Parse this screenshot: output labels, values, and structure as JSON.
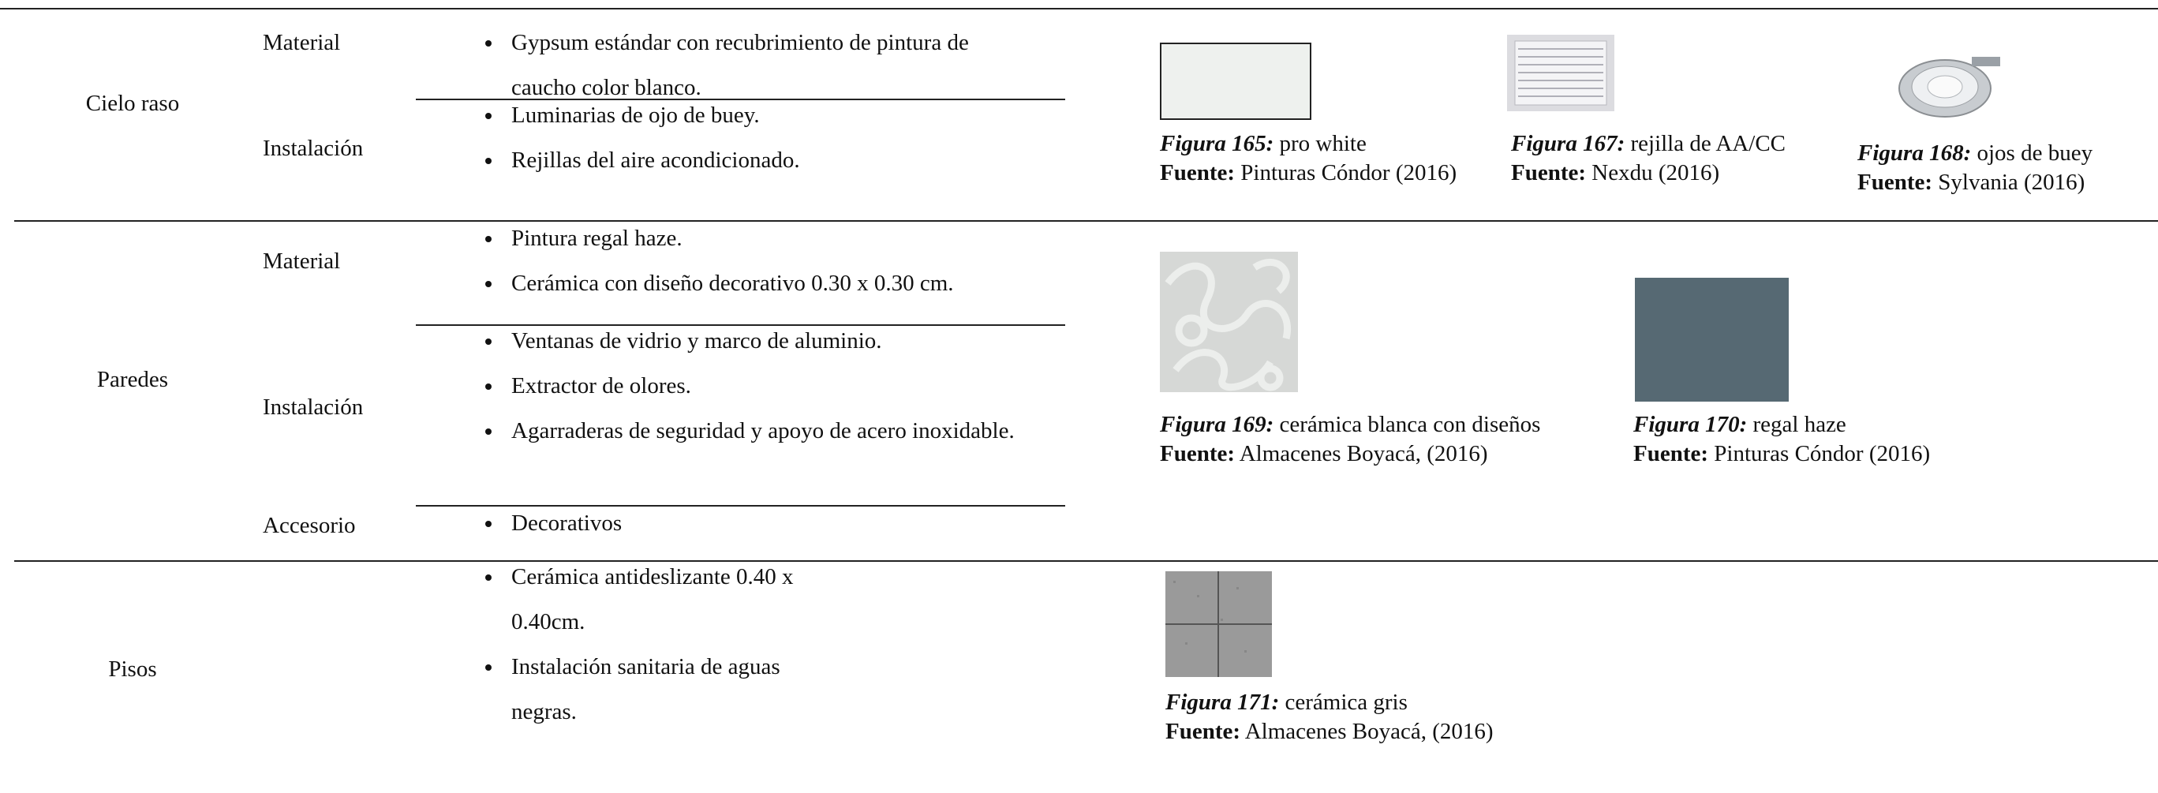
{
  "table": {
    "rows": [
      {
        "area": "Cielo raso",
        "groups": [
          {
            "label": "Material",
            "items": [
              "Gypsum estándar con recubrimiento de pintura de caucho color blanco."
            ]
          },
          {
            "label": "Instalación",
            "items": [
              "Luminarias de ojo de buey.",
              "Rejillas del aire acondicionado."
            ]
          }
        ],
        "figures": [
          {
            "figure": "Figura 165:",
            "caption": "pro white",
            "source_label": "Fuente:",
            "source": "Pinturas Cóndor (2016)"
          },
          {
            "figure": "Figura 167:",
            "caption": "rejilla de AA/CC",
            "source_label": "Fuente:",
            "source": "Nexdu (2016)"
          },
          {
            "figure": "Figura 168:",
            "caption": "ojos de buey",
            "source_label": "Fuente:",
            "source": "Sylvania (2016)"
          }
        ]
      },
      {
        "area": "Paredes",
        "groups": [
          {
            "label": "Material",
            "items": [
              "Pintura  regal haze.",
              "Cerámica con diseño decorativo 0.30 x 0.30 cm."
            ]
          },
          {
            "label": "Instalación",
            "items": [
              "Ventanas de vidrio y marco de aluminio.",
              "Extractor de olores.",
              "Agarraderas de seguridad y apoyo de acero inoxidable."
            ]
          },
          {
            "label": "Accesorio",
            "items": [
              "Decorativos"
            ]
          }
        ],
        "figures": [
          {
            "figure": "Figura 169:",
            "caption": "cerámica blanca con diseños",
            "source_label": "Fuente:",
            "source": "Almacenes Boyacá, (2016)"
          },
          {
            "figure": "Figura 170:",
            "caption": "regal haze",
            "source_label": "Fuente:",
            "source": "Pinturas Cóndor (2016)"
          }
        ]
      },
      {
        "area": "Pisos",
        "groups": [
          {
            "label": null,
            "items": [
              "Cerámica  antideslizante 0.40 x 0.40cm.",
              "Instalación sanitaria de aguas negras."
            ]
          }
        ],
        "figures": [
          {
            "figure": "Figura 171:",
            "caption": "cerámica gris",
            "source_label": "Fuente:",
            "source": "Almacenes Boyacá, (2016)"
          }
        ]
      }
    ]
  }
}
